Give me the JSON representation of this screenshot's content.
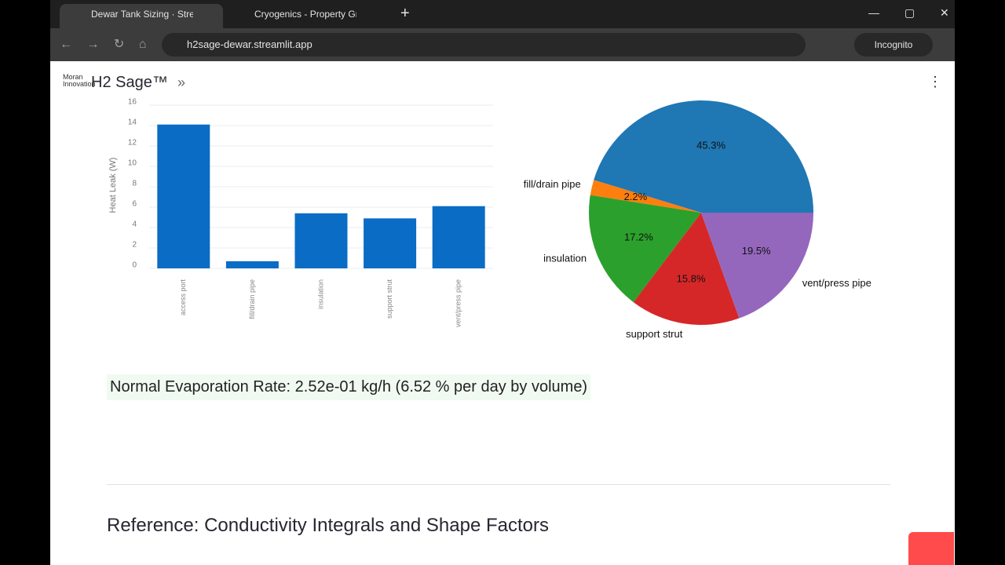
{
  "browser": {
    "tabs": [
      "Dewar Tank Sizing · Streamlit",
      "Cryogenics - Property Graphing"
    ],
    "url": "h2sage-dewar.streamlit.app",
    "mode": "Incognito"
  },
  "app": {
    "logo": "Moran Innovation",
    "title": "H2 Sage™"
  },
  "chart_data": [
    {
      "type": "bar",
      "ylabel": "Heat Leak (W)",
      "categories": [
        "access port",
        "fill/drain pipe",
        "insulation",
        "support strut",
        "vent/press pipe"
      ],
      "values": [
        14.1,
        0.7,
        5.4,
        4.9,
        6.1
      ],
      "color": "#0a6cc4",
      "ylim": [
        0,
        16
      ],
      "yticks": [
        0,
        2,
        4,
        6,
        8,
        10,
        12,
        14,
        16
      ],
      "grid": true
    },
    {
      "type": "pie",
      "categories": [
        null,
        "fill/drain pipe",
        "insulation",
        "support strut",
        "vent/press pipe"
      ],
      "values": [
        45.3,
        2.2,
        17.2,
        15.8,
        19.5
      ],
      "value_labels": [
        "45.3%",
        "2.2%",
        "17.2%",
        "15.8%",
        "19.5%"
      ],
      "colors": [
        "#1f77b4",
        "#ff7f0e",
        "#2ca02c",
        "#d62728",
        "#9467bd"
      ]
    }
  ],
  "result": "Normal Evaporation Rate: 2.52e-01 kg/h (6.52 % per day by volume)",
  "section_heading": "Reference: Conductivity Integrals and Shape Factors"
}
